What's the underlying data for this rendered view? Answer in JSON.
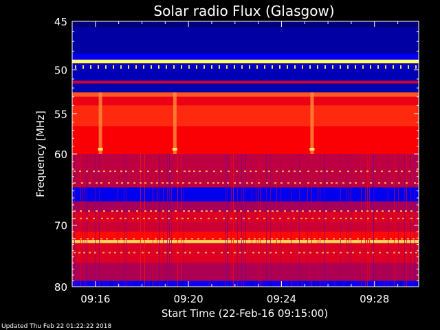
{
  "chart_data": {
    "type": "heatmap",
    "title": "Solar radio Flux (Glasgow)",
    "xlabel": "Start Time (22-Feb-16 09:15:00)",
    "ylabel": "Frequency [MHz]",
    "x_ticks": [
      "09:16",
      "09:20",
      "09:24",
      "09:28"
    ],
    "x_tick_minutes": [
      1,
      5,
      9,
      13
    ],
    "xlim_minutes": [
      0,
      14.9
    ],
    "y_ticks": [
      45,
      50,
      55,
      60,
      70,
      80
    ],
    "ylim": [
      45,
      80
    ],
    "y_scale": "log",
    "colormap": [
      "#000060",
      "#0000ff",
      "#ff0000",
      "#ffff66"
    ],
    "bands": [
      {
        "from": 45.0,
        "to": 45.6,
        "level": 0.06
      },
      {
        "from": 45.6,
        "to": 48.3,
        "level": 0.14
      },
      {
        "from": 48.3,
        "to": 48.9,
        "level": 0.32
      },
      {
        "from": 48.9,
        "to": 49.3,
        "level": 1.0
      },
      {
        "from": 49.3,
        "to": 49.7,
        "level": 0.22
      },
      {
        "from": 49.7,
        "to": 51.2,
        "level": 0.18
      },
      {
        "from": 51.2,
        "to": 51.5,
        "level": 0.6
      },
      {
        "from": 51.5,
        "to": 52.5,
        "level": 0.16
      },
      {
        "from": 52.5,
        "to": 53.0,
        "level": 0.78
      },
      {
        "from": 53.0,
        "to": 54.0,
        "level": 0.64
      },
      {
        "from": 54.0,
        "to": 56.5,
        "level": 0.72
      },
      {
        "from": 56.5,
        "to": 60.0,
        "level": 0.66
      },
      {
        "from": 60.0,
        "to": 64.5,
        "level": 0.58
      },
      {
        "from": 64.5,
        "to": 66.5,
        "level": 0.3
      },
      {
        "from": 66.5,
        "to": 68.0,
        "level": 0.55
      },
      {
        "from": 68.0,
        "to": 69.5,
        "level": 0.62
      },
      {
        "from": 69.5,
        "to": 71.0,
        "level": 0.6
      },
      {
        "from": 71.0,
        "to": 72.3,
        "level": 0.68
      },
      {
        "from": 72.3,
        "to": 72.8,
        "level": 0.95
      },
      {
        "from": 72.8,
        "to": 76.0,
        "level": 0.62
      },
      {
        "from": 76.0,
        "to": 79.0,
        "level": 0.56
      },
      {
        "from": 79.0,
        "to": 80.0,
        "level": 0.35
      }
    ],
    "bursts_minutes": [
      1.2,
      4.4,
      10.3
    ],
    "updated": "Updated Thu Feb 22 01:22:22 2018"
  }
}
